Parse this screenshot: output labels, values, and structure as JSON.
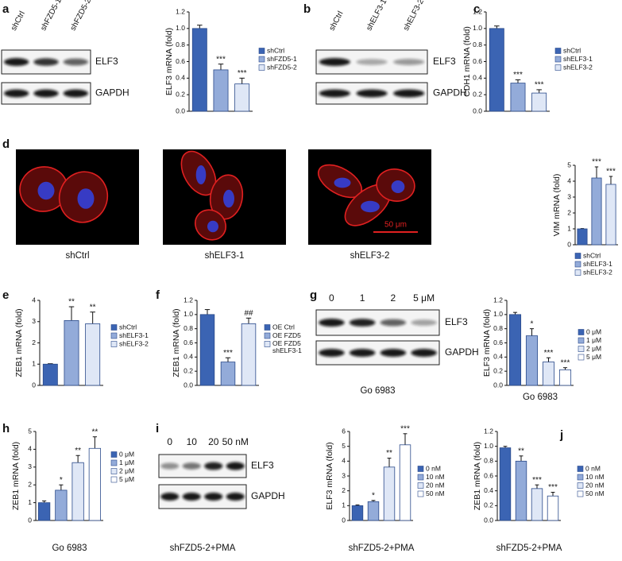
{
  "panels": [
    "a",
    "b",
    "c",
    "d",
    "e",
    "f",
    "g",
    "h",
    "i",
    "j"
  ],
  "blots": [
    {
      "lanes": [
        "shCtrl",
        "shFZD5-1",
        "shFZD5-2"
      ],
      "bands": [
        "ELF3",
        "GAPDH"
      ]
    },
    {
      "lanes": [
        "shCtrl",
        "shELF3-1",
        "shELF3-2"
      ],
      "bands": [
        "ELF3",
        "GAPDH"
      ]
    },
    {
      "lanes": [
        "0",
        "1",
        "2",
        "5 μM"
      ],
      "bands": [
        "ELF3",
        "GAPDH"
      ],
      "caption": "Go 6983"
    },
    {
      "lanes": [
        "0",
        "10",
        "20",
        "50 nM"
      ],
      "bands": [
        "ELF3",
        "GAPDH"
      ],
      "caption": "shFZD5-2+PMA"
    }
  ],
  "images": {
    "captions": [
      "shCtrl",
      "shELF3-1",
      "shELF3-2"
    ],
    "scale_bar": "50 μm"
  },
  "chart_data": [
    {
      "type": "bar",
      "ylabel": "ELF3 mRNA (fold)",
      "categories": [
        null
      ],
      "ylim": [
        0,
        1.2
      ],
      "yticks": [
        {
          "value": 0,
          "label": "0.0"
        },
        {
          "value": 0.2,
          "label": "0.2"
        },
        {
          "value": 0.4,
          "label": "0.4"
        },
        {
          "value": 0.6,
          "label": "0.6"
        },
        {
          "value": 0.8,
          "label": "0.8"
        },
        {
          "value": 1.0,
          "label": "1.0"
        },
        {
          "value": 1.2,
          "label": "1.2"
        }
      ],
      "series": [
        {
          "name": "shCtrl",
          "color": "#3b64b3",
          "values": [
            1.0
          ],
          "errors": [
            0.04
          ],
          "sig": [
            null
          ]
        },
        {
          "name": "shFZD5-1",
          "color": "#93abd9",
          "values": [
            0.5
          ],
          "errors": [
            0.07
          ],
          "sig": [
            "***"
          ]
        },
        {
          "name": "shFZD5-2",
          "color": "#dfe7f6",
          "values": [
            0.33
          ],
          "errors": [
            0.07
          ],
          "sig": [
            "***"
          ]
        }
      ]
    },
    {
      "type": "bar",
      "ylabel": "CDH1 mRNA (fold)",
      "categories": [
        null
      ],
      "ylim": [
        0,
        1.2
      ],
      "yticks": [
        {
          "value": 0,
          "label": "0.0"
        },
        {
          "value": 0.2,
          "label": "0.2"
        },
        {
          "value": 0.4,
          "label": "0.4"
        },
        {
          "value": 0.6,
          "label": "0.6"
        },
        {
          "value": 0.8,
          "label": "0.8"
        },
        {
          "value": 1.0,
          "label": "1.0"
        },
        {
          "value": 1.2,
          "label": "1.2"
        }
      ],
      "series": [
        {
          "name": "shCtrl",
          "color": "#3b64b3",
          "values": [
            1.0
          ],
          "errors": [
            0.03
          ],
          "sig": [
            null
          ]
        },
        {
          "name": "shELF3-1",
          "color": "#93abd9",
          "values": [
            0.34
          ],
          "errors": [
            0.04
          ],
          "sig": [
            "***"
          ]
        },
        {
          "name": "shELF3-2",
          "color": "#dfe7f6",
          "values": [
            0.22
          ],
          "errors": [
            0.04
          ],
          "sig": [
            "***"
          ]
        }
      ]
    },
    {
      "type": "bar",
      "ylabel": "VIM mRNA (fold)",
      "categories": [
        null
      ],
      "ylim": [
        0,
        5
      ],
      "yticks": [
        0,
        1,
        2,
        3,
        4,
        5
      ],
      "series": [
        {
          "name": "shCtrl",
          "color": "#3b64b3",
          "values": [
            1.0
          ],
          "errors": [
            0.02
          ],
          "sig": [
            null
          ]
        },
        {
          "name": "shELF3-1",
          "color": "#93abd9",
          "values": [
            4.2
          ],
          "errors": [
            0.7
          ],
          "sig": [
            "***"
          ]
        },
        {
          "name": "shELF3-2",
          "color": "#dfe7f6",
          "values": [
            3.8
          ],
          "errors": [
            0.5
          ],
          "sig": [
            "***"
          ]
        }
      ]
    },
    {
      "type": "bar",
      "ylabel": "ZEB1 mRNA (fold)",
      "categories": [
        null
      ],
      "ylim": [
        0,
        4
      ],
      "yticks": [
        0,
        1,
        2,
        3,
        4
      ],
      "series": [
        {
          "name": "shCtrl",
          "color": "#3b64b3",
          "values": [
            1.0
          ],
          "errors": [
            0.02
          ],
          "sig": [
            null
          ]
        },
        {
          "name": "shELF3-1",
          "color": "#93abd9",
          "values": [
            3.05
          ],
          "errors": [
            0.65
          ],
          "sig": [
            "**"
          ]
        },
        {
          "name": "shELF3-2",
          "color": "#dfe7f6",
          "values": [
            2.9
          ],
          "errors": [
            0.55
          ],
          "sig": [
            "**"
          ]
        }
      ]
    },
    {
      "type": "bar",
      "ylabel": "ZEB1 mRNA (fold)",
      "categories": [
        null
      ],
      "ylim": [
        0,
        1.2
      ],
      "yticks": [
        {
          "value": 0,
          "label": "0.0"
        },
        {
          "value": 0.2,
          "label": "0.2"
        },
        {
          "value": 0.4,
          "label": "0.4"
        },
        {
          "value": 0.6,
          "label": "0.6"
        },
        {
          "value": 0.8,
          "label": "0.8"
        },
        {
          "value": 1.0,
          "label": "1.0"
        },
        {
          "value": 1.2,
          "label": "1.2"
        }
      ],
      "series": [
        {
          "name": "OE Ctrl",
          "color": "#3b64b3",
          "values": [
            1.0
          ],
          "errors": [
            0.07
          ],
          "sig": [
            null
          ]
        },
        {
          "name": "OE FZD5",
          "color": "#93abd9",
          "values": [
            0.33
          ],
          "errors": [
            0.06
          ],
          "sig": [
            "***"
          ]
        },
        {
          "name": "OE FZD5 shELF3-1",
          "color": "#dfe7f6",
          "values": [
            0.87
          ],
          "errors": [
            0.08
          ],
          "sig": [
            "##"
          ]
        }
      ]
    },
    {
      "type": "bar",
      "ylabel": "ELF3 mRNA (fold)",
      "xlabel": "Go 6983",
      "categories": [
        null
      ],
      "ylim": [
        0,
        1.2
      ],
      "yticks": [
        {
          "value": 0,
          "label": "0.0"
        },
        {
          "value": 0.2,
          "label": "0.2"
        },
        {
          "value": 0.4,
          "label": "0.4"
        },
        {
          "value": 0.6,
          "label": "0.6"
        },
        {
          "value": 0.8,
          "label": "0.8"
        },
        {
          "value": 1.0,
          "label": "1.0"
        },
        {
          "value": 1.2,
          "label": "1.2"
        }
      ],
      "series": [
        {
          "name": "0 μM",
          "color": "#3b64b3",
          "values": [
            1.0
          ],
          "errors": [
            0.03
          ],
          "sig": [
            null
          ]
        },
        {
          "name": "1 μM",
          "color": "#93abd9",
          "values": [
            0.7
          ],
          "errors": [
            0.1
          ],
          "sig": [
            "*"
          ]
        },
        {
          "name": "2 μM",
          "color": "#dfe7f6",
          "values": [
            0.33
          ],
          "errors": [
            0.06
          ],
          "sig": [
            "***"
          ]
        },
        {
          "name": "5 μM",
          "color": "#ffffff",
          "values": [
            0.22
          ],
          "errors": [
            0.03
          ],
          "sig": [
            "***"
          ]
        }
      ]
    },
    {
      "type": "bar",
      "ylabel": "ZEB1 mRNA (fold)",
      "xlabel": "Go 6983",
      "categories": [
        null
      ],
      "ylim": [
        0,
        5
      ],
      "yticks": [
        0,
        1,
        2,
        3,
        4,
        5
      ],
      "series": [
        {
          "name": "0 μM",
          "color": "#3b64b3",
          "values": [
            1.0
          ],
          "errors": [
            0.1
          ],
          "sig": [
            null
          ]
        },
        {
          "name": "1 μM",
          "color": "#93abd9",
          "values": [
            1.7
          ],
          "errors": [
            0.3
          ],
          "sig": [
            "*"
          ]
        },
        {
          "name": "2 μM",
          "color": "#dfe7f6",
          "values": [
            3.25
          ],
          "errors": [
            0.4
          ],
          "sig": [
            "**"
          ]
        },
        {
          "name": "5 μM",
          "color": "#ffffff",
          "values": [
            4.05
          ],
          "errors": [
            0.65
          ],
          "sig": [
            "**"
          ]
        }
      ]
    },
    {
      "type": "bar",
      "ylabel": "ELF3 mRNA (fold)",
      "xlabel": "shFZD5-2+PMA",
      "categories": [
        null
      ],
      "ylim": [
        0,
        6
      ],
      "yticks": [
        0,
        1,
        2,
        3,
        4,
        5,
        6
      ],
      "series": [
        {
          "name": "0 nM",
          "color": "#3b64b3",
          "values": [
            1.0
          ],
          "errors": [
            0.05
          ],
          "sig": [
            null
          ]
        },
        {
          "name": "10 nM",
          "color": "#93abd9",
          "values": [
            1.27
          ],
          "errors": [
            0.08
          ],
          "sig": [
            "*"
          ]
        },
        {
          "name": "20 nM",
          "color": "#dfe7f6",
          "values": [
            3.6
          ],
          "errors": [
            0.6
          ],
          "sig": [
            "**"
          ]
        },
        {
          "name": "50 nM",
          "color": "#ffffff",
          "values": [
            5.1
          ],
          "errors": [
            0.75
          ],
          "sig": [
            "***"
          ]
        }
      ]
    },
    {
      "type": "bar",
      "ylabel": "ZEB1 mRNA (fold)",
      "xlabel": "shFZD5-2+PMA",
      "categories": [
        null
      ],
      "ylim": [
        0,
        1.2
      ],
      "yticks": [
        {
          "value": 0,
          "label": "0.0"
        },
        {
          "value": 0.2,
          "label": "0.2"
        },
        {
          "value": 0.4,
          "label": "0.4"
        },
        {
          "value": 0.6,
          "label": "0.6"
        },
        {
          "value": 0.8,
          "label": "0.8"
        },
        {
          "value": 1.0,
          "label": "1.0"
        },
        {
          "value": 1.2,
          "label": "1.2"
        }
      ],
      "series": [
        {
          "name": "0 nM",
          "color": "#3b64b3",
          "values": [
            0.98
          ],
          "errors": [
            0.02
          ],
          "sig": [
            null
          ]
        },
        {
          "name": "10 nM",
          "color": "#93abd9",
          "values": [
            0.8
          ],
          "errors": [
            0.07
          ],
          "sig": [
            "**"
          ]
        },
        {
          "name": "20 nM",
          "color": "#dfe7f6",
          "values": [
            0.43
          ],
          "errors": [
            0.05
          ],
          "sig": [
            "***"
          ]
        },
        {
          "name": "50 nM",
          "color": "#ffffff",
          "values": [
            0.33
          ],
          "errors": [
            0.05
          ],
          "sig": [
            "***"
          ]
        }
      ]
    }
  ]
}
